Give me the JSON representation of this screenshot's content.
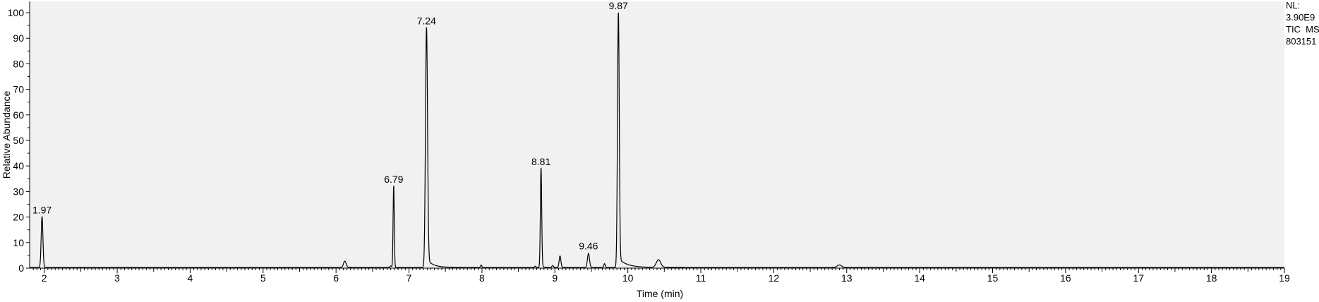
{
  "chart_data": {
    "type": "line",
    "xlabel": "Time (min)",
    "ylabel": "Relative Abundance",
    "xlim": [
      1.8,
      19
    ],
    "ylim": [
      0,
      100
    ],
    "x_ticks": [
      2,
      3,
      4,
      5,
      6,
      7,
      8,
      9,
      10,
      11,
      12,
      13,
      14,
      15,
      16,
      17,
      18,
      19
    ],
    "y_ticks": [
      0,
      10,
      20,
      30,
      40,
      50,
      60,
      70,
      80,
      90,
      100
    ],
    "grid": false,
    "background": "#f1f1f1",
    "line_color": "#000000",
    "peak_labels": [
      {
        "x": 1.97,
        "y": 20,
        "text": "1.97"
      },
      {
        "x": 6.79,
        "y": 32,
        "text": "6.79"
      },
      {
        "x": 7.24,
        "y": 94,
        "text": "7.24"
      },
      {
        "x": 8.81,
        "y": 39,
        "text": "8.81"
      },
      {
        "x": 9.46,
        "y": 6,
        "text": "9.46"
      },
      {
        "x": 9.87,
        "y": 100,
        "text": "9.87"
      }
    ],
    "peaks": [
      {
        "x": 1.97,
        "y": 20,
        "width": 0.012,
        "tail": 0
      },
      {
        "x": 6.12,
        "y": 2.5,
        "width": 0.018,
        "tail": 0.06
      },
      {
        "x": 6.75,
        "y": 0.6,
        "width": 0.012,
        "tail": 0
      },
      {
        "x": 6.79,
        "y": 32,
        "width": 0.008,
        "tail": 0.01
      },
      {
        "x": 7.24,
        "y": 94,
        "width": 0.014,
        "tail": 0.09
      },
      {
        "x": 7.99,
        "y": 1.0,
        "width": 0.008,
        "tail": 0
      },
      {
        "x": 8.73,
        "y": 0.5,
        "width": 0.01,
        "tail": 0
      },
      {
        "x": 8.81,
        "y": 39,
        "width": 0.009,
        "tail": 0.02
      },
      {
        "x": 8.97,
        "y": 0.7,
        "width": 0.012,
        "tail": 0
      },
      {
        "x": 9.07,
        "y": 4.5,
        "width": 0.012,
        "tail": 0.02
      },
      {
        "x": 9.46,
        "y": 5.5,
        "width": 0.014,
        "tail": 0.02
      },
      {
        "x": 9.68,
        "y": 1.5,
        "width": 0.01,
        "tail": 0
      },
      {
        "x": 9.87,
        "y": 100,
        "width": 0.012,
        "tail": 0.12
      },
      {
        "x": 10.42,
        "y": 3.0,
        "width": 0.03,
        "tail": 0.18
      },
      {
        "x": 12.9,
        "y": 1.0,
        "width": 0.03,
        "tail": 0
      }
    ],
    "info_lines": [
      "NL:",
      "3.90E9",
      "TIC  MS",
      "803151"
    ]
  }
}
